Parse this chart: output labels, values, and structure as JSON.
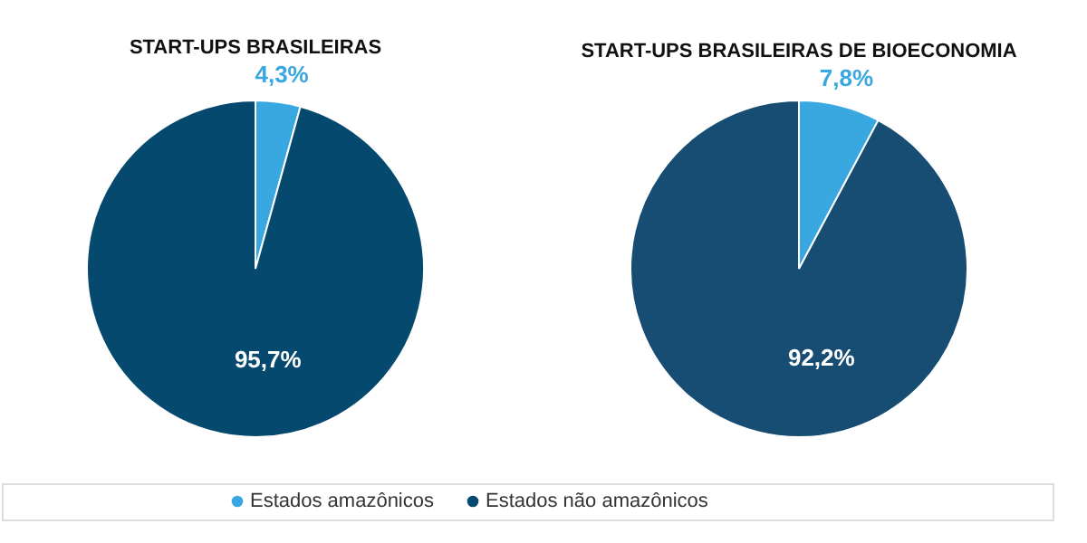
{
  "chart_data": [
    {
      "type": "pie",
      "title": "START-UPS BRASILEIRAS",
      "categories": [
        "Estados amazônicos",
        "Estados não amazônicos"
      ],
      "values": [
        4.3,
        95.7
      ],
      "colors": [
        "#3aa8e0",
        "#054a6e"
      ],
      "value_labels": [
        "4,3%",
        "95,7%"
      ],
      "legend": "bottom"
    },
    {
      "type": "pie",
      "title": "START-UPS BRASILEIRAS DE BIOECONOMIA",
      "categories": [
        null,
        null
      ],
      "values": [
        7.8,
        92.2
      ],
      "colors": [
        "#3aa8e0",
        "#174d72"
      ],
      "value_labels": [
        "7,8%",
        "92,2%"
      ]
    }
  ]
}
